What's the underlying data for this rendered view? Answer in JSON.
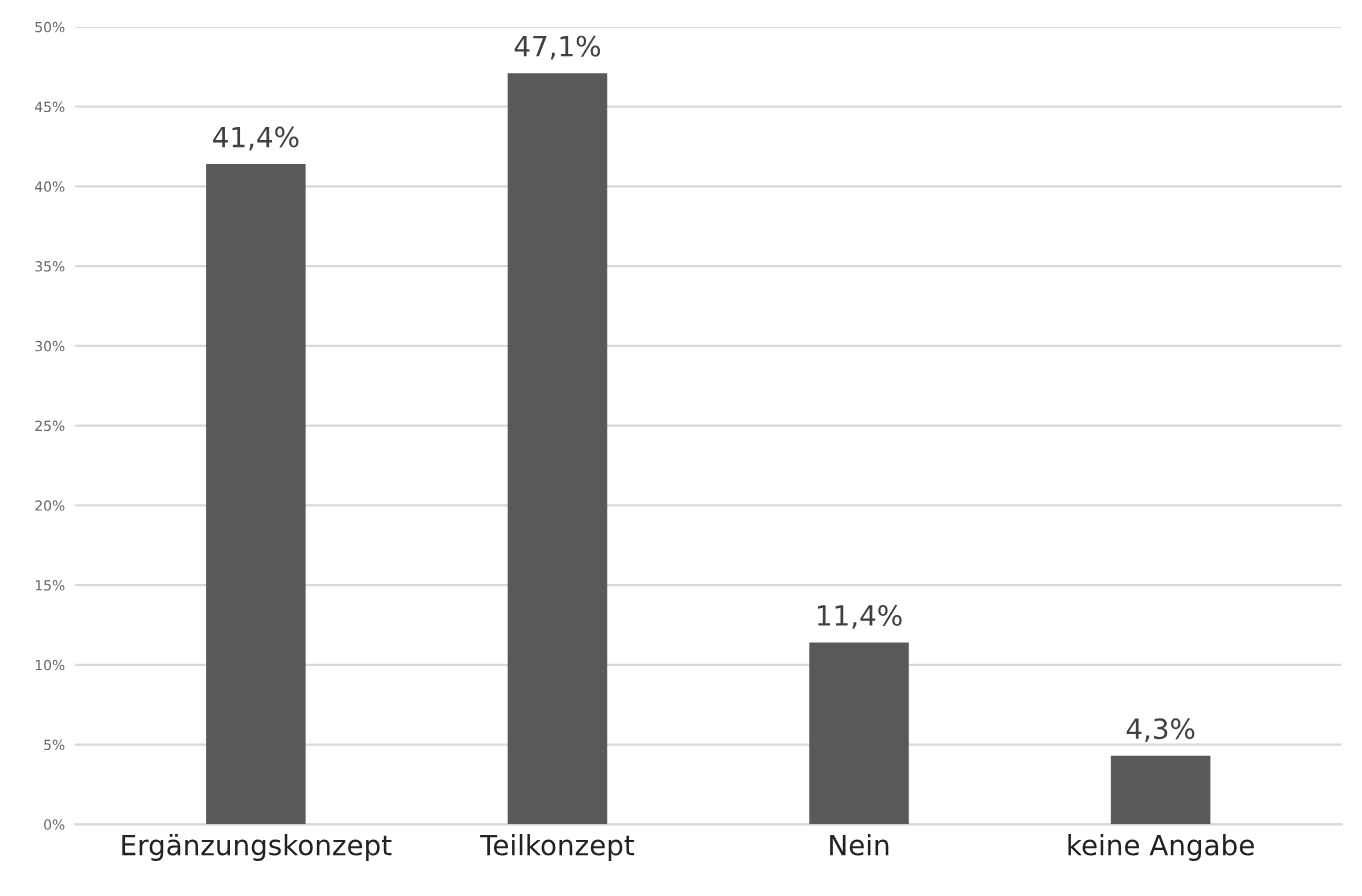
{
  "chart_data": {
    "type": "bar",
    "categories": [
      "Ergänzungskonzept",
      "Teilkonzept",
      "Nein",
      "keine Angabe"
    ],
    "values": [
      41.4,
      47.1,
      11.4,
      4.3
    ],
    "value_labels": [
      "41,4%",
      "47,1%",
      "11,4%",
      "4,3%"
    ],
    "color": "#595959",
    "ylim": [
      0,
      50
    ],
    "yticks": [
      {
        "value": 0,
        "label": "0%"
      },
      {
        "value": 5,
        "label": "5%"
      },
      {
        "value": 10,
        "label": "10%"
      },
      {
        "value": 15,
        "label": "15%"
      },
      {
        "value": 20,
        "label": "20%"
      },
      {
        "value": 25,
        "label": "25%"
      },
      {
        "value": 30,
        "label": "30%"
      },
      {
        "value": 35,
        "label": "35%"
      },
      {
        "value": 40,
        "label": "40%"
      },
      {
        "value": 45,
        "label": "45%"
      },
      {
        "value": 50,
        "label": "50%"
      }
    ],
    "grid": "y",
    "legend": false
  }
}
